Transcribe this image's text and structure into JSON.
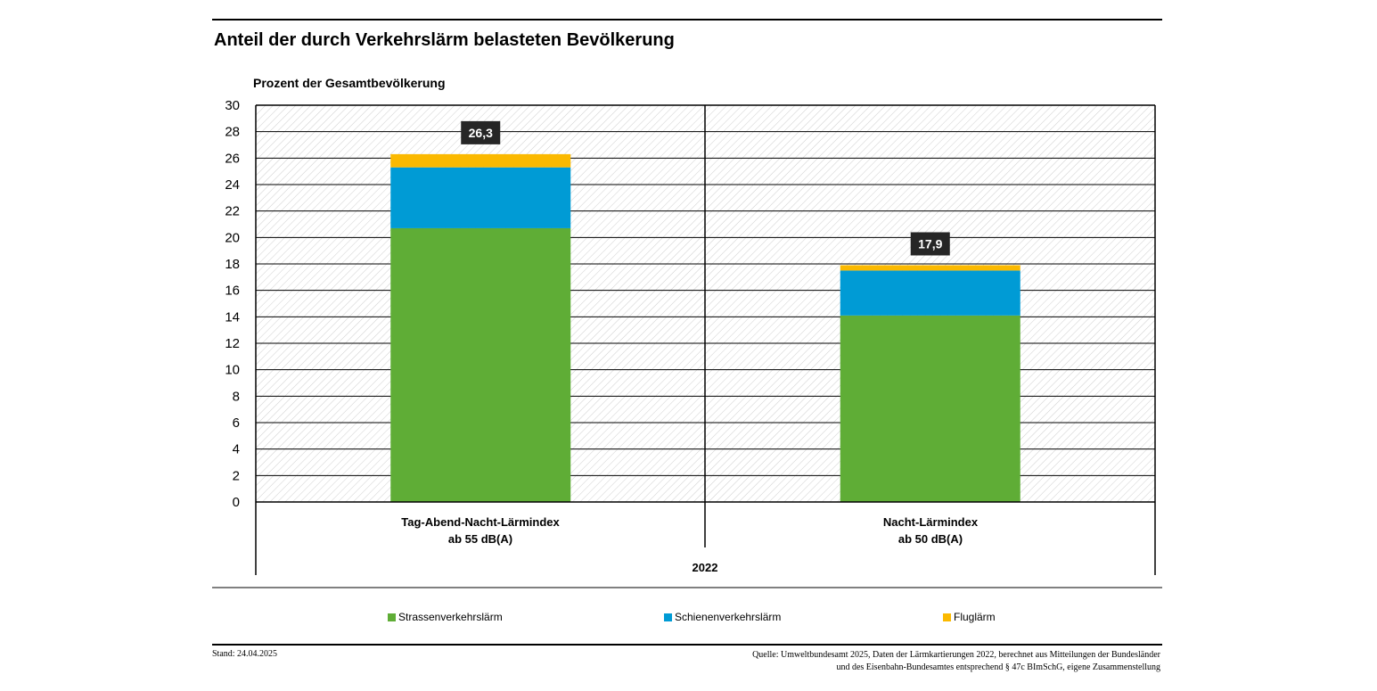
{
  "chart_data": {
    "type": "bar",
    "stacked": true,
    "title": "Anteil der durch Verkehrslärm belasteten Bevölkerung",
    "ylabel": "Prozent der Gesamtbevölkerung",
    "ylim": [
      0,
      30
    ],
    "yticks": [
      "0",
      "2",
      "4",
      "6",
      "8",
      "10",
      "12",
      "14",
      "16",
      "18",
      "20",
      "22",
      "24",
      "26",
      "28",
      "30"
    ],
    "grid": true,
    "categories": [
      {
        "line1": "Tag-Abend-Nacht-Lärmindex",
        "line2": "ab 55 dB(A)"
      },
      {
        "line1": "Nacht-Lärmindex",
        "line2": "ab 50 dB(A)"
      }
    ],
    "group_label": "2022",
    "series": [
      {
        "name": "Strassenverkehrslärm",
        "color": "#5fad36",
        "values": [
          20.7,
          14.1
        ]
      },
      {
        "name": "Schienenverkehrslärm",
        "color": "#009bd5",
        "values": [
          4.6,
          3.4
        ]
      },
      {
        "name": "Fluglärm",
        "color": "#fbb900",
        "values": [
          1.0,
          0.4
        ]
      }
    ],
    "totals": [
      "26,3",
      "17,9"
    ],
    "total_values": [
      26.3,
      17.9
    ],
    "legend_position": "bottom"
  },
  "footer": {
    "stand": "Stand: 24.04.2025",
    "source_line1": "Quelle: Umweltbundesamt 2025, Daten der Lärmkartierungen 2022, berechnet aus Mitteilungen der Bundesländer",
    "source_line2": "und des Eisenbahn-Bundesamtes entsprechend § 47c BImSchG, eigene Zusammenstellung"
  }
}
